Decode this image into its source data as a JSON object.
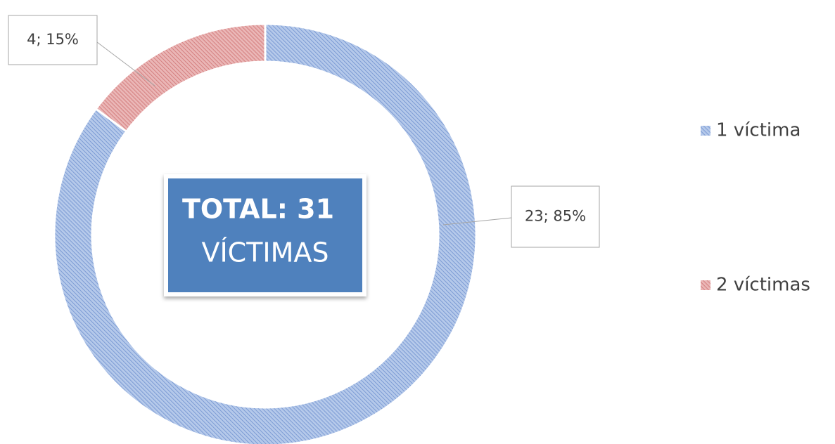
{
  "chart_data": {
    "type": "donut",
    "categories": [
      "1 víctima",
      "2 víctimas"
    ],
    "values": [
      23,
      4
    ],
    "value_labels": [
      "23; 85%",
      "4; 15%"
    ],
    "colors": [
      "#8fafe0",
      "#e09a9a"
    ],
    "legend": "right",
    "annotations": [
      "TOTAL: 31",
      "VÍCTIMAS"
    ]
  }
}
